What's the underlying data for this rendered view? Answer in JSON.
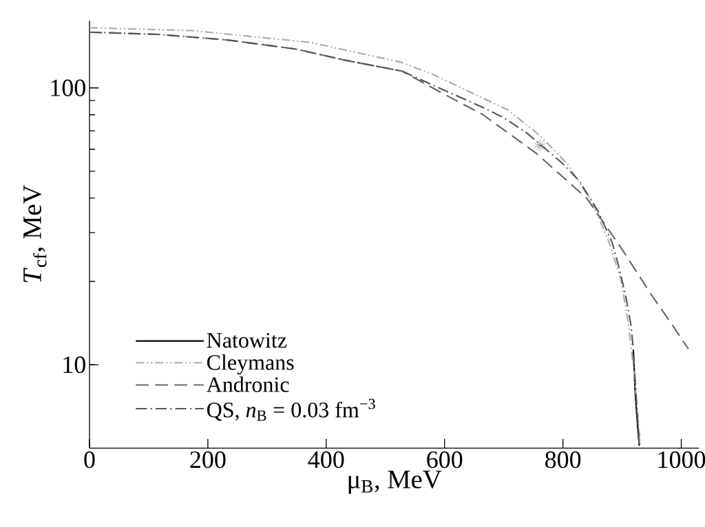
{
  "chart_data": {
    "type": "line",
    "xlabel": "μ$_{B}$, MeV",
    "ylabel": "*T*$_{cf}$, MeV",
    "log": "y",
    "xlim": [
      0,
      1030
    ],
    "ylim": [
      5,
      175
    ],
    "xticks": [
      0,
      200,
      400,
      600,
      800,
      1000
    ],
    "yticks": [
      10,
      100
    ],
    "grid": false,
    "legend": "bottom left",
    "marker": "none",
    "series": [
      {
        "name": "Natowitz",
        "color": "#000000",
        "line_style": "solid",
        "x": [
          919,
          922,
          925,
          929
        ],
        "values": [
          11.3,
          8,
          6.5,
          5.1
        ]
      },
      {
        "name": "Cleymans",
        "color": "#aaaaaa",
        "line_style": "dashdotdotted",
        "x": [
          0,
          175,
          373,
          525,
          580,
          708,
          762,
          808,
          851,
          878,
          898,
          910,
          919,
          931
        ],
        "values": [
          165,
          161,
          146,
          124,
          112,
          83,
          67,
          53,
          38,
          27.7,
          20.3,
          14.4,
          9.9,
          5.15
        ]
      },
      {
        "name": "Andronic",
        "color": "#666666",
        "line_style": "dashed",
        "x": [
          0,
          117,
          233,
          350,
          431,
          528,
          595,
          665,
          755,
          840,
          898,
          948,
          988,
          1012
        ],
        "values": [
          159,
          156,
          149,
          138,
          126,
          115,
          96,
          80,
          58,
          40,
          26.5,
          18.1,
          13.6,
          11.4
        ]
      },
      {
        "name": "QS, *n*$_{B}$ = 0.03 fm$^{−3}$",
        "color": "#555555",
        "line_style": "dashdotted",
        "x": [
          0,
          117,
          233,
          350,
          431,
          528,
          595,
          665,
          700,
          738,
          801,
          828,
          859,
          883,
          894,
          906,
          915,
          919,
          929
        ],
        "values": [
          159,
          156,
          149,
          138,
          126,
          115,
          99,
          85,
          78,
          69,
          53,
          46,
          36,
          27.7,
          22.8,
          17.8,
          13.9,
          11.3,
          5.1
        ]
      },
      {
        "type": "scatter",
        "marker": "cross",
        "color": "#777777",
        "x": [
          761
        ],
        "values": [
          62
        ]
      }
    ]
  }
}
